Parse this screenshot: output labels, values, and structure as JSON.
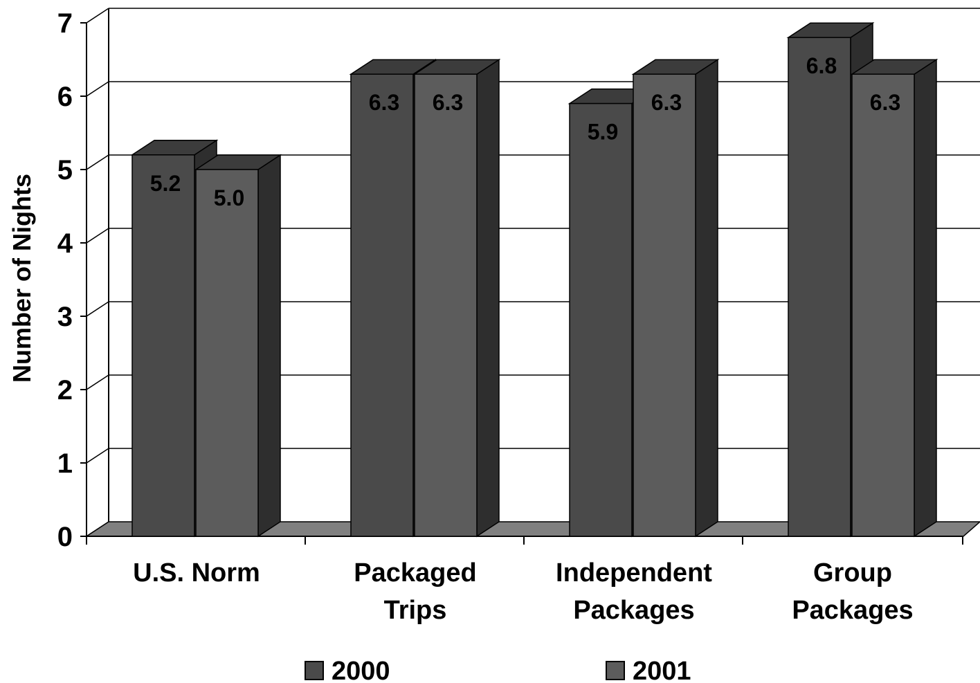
{
  "chart_data": {
    "type": "bar",
    "style": "3d-clustered-column",
    "ylabel": "Number of Nights",
    "xlabel": "",
    "ylim": [
      0,
      7
    ],
    "yticks": [
      0,
      1,
      2,
      3,
      4,
      5,
      6,
      7
    ],
    "grid": true,
    "legend_position": "bottom",
    "categories": [
      [
        "U.S. Norm"
      ],
      [
        "Packaged",
        "Trips"
      ],
      [
        "Independent",
        "Packages"
      ],
      [
        "Group",
        "Packages"
      ]
    ],
    "series": [
      {
        "name": "2000",
        "values": [
          5.2,
          6.3,
          5.9,
          6.8
        ],
        "labels": [
          "5.2",
          "6.3",
          "5.9",
          "6.8"
        ],
        "color": "#4a4a4a"
      },
      {
        "name": "2001",
        "values": [
          5.0,
          6.3,
          6.3,
          6.3
        ],
        "labels": [
          "5.0",
          "6.3",
          "6.3",
          "6.3"
        ],
        "color": "#5c5c5c"
      }
    ],
    "colors": {
      "side": "#2e2e2e",
      "top": "#3c3c3c",
      "floor": "#808080",
      "grid": "#000000"
    }
  }
}
